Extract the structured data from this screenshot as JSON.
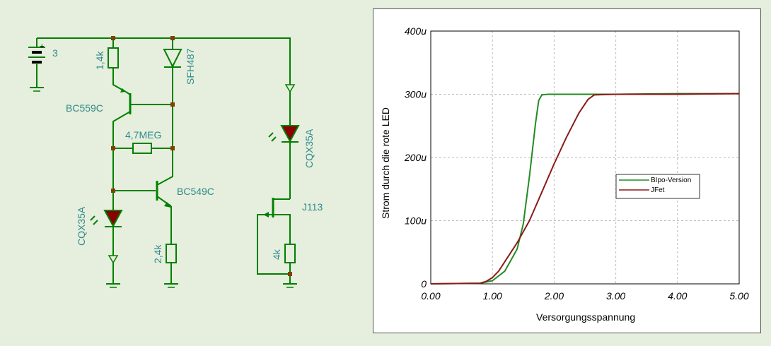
{
  "schematic": {
    "battery_value": "3",
    "r1_label": "1,4k",
    "q1_label": "BC559C",
    "d_sfh_label": "SFH487",
    "r_feedback_label": "4,7MEG",
    "q2_label": "BC549C",
    "led1_label": "CQX35A",
    "r2_label": "2,4k",
    "led2_label": "CQX35A",
    "jfet_label": "J113",
    "r3_label": "4k",
    "plus_sign": "+",
    "colors": {
      "wire": "#008000",
      "text": "#2e8b8b",
      "led_fill": "#8b0000",
      "junction": "#804000"
    }
  },
  "chart_data": {
    "type": "line",
    "xlabel": "Versorgungsspannung",
    "ylabel": "Strom durch die rote LED",
    "xlim": [
      0,
      5
    ],
    "ylim": [
      0,
      400
    ],
    "x_ticks": [
      "0.00",
      "1.00",
      "2.00",
      "3.00",
      "4.00",
      "5.00"
    ],
    "y_ticks": [
      "0",
      "100u",
      "200u",
      "300u",
      "400u"
    ],
    "grid": true,
    "legend_position": "center-right",
    "series": [
      {
        "name": "BIpo-Version",
        "color": "#228b22",
        "x": [
          0,
          0.8,
          1.0,
          1.2,
          1.4,
          1.5,
          1.6,
          1.7,
          1.75,
          1.8,
          1.9,
          2.5,
          3.0,
          4.0,
          5.0
        ],
        "y": [
          0,
          1,
          5,
          20,
          55,
          95,
          170,
          255,
          290,
          299,
          300,
          300,
          300,
          301,
          301
        ]
      },
      {
        "name": "JFet",
        "color": "#8b1a1a",
        "x": [
          0,
          0.8,
          0.9,
          1.0,
          1.1,
          1.2,
          1.4,
          1.6,
          1.8,
          2.0,
          2.2,
          2.4,
          2.55,
          2.65,
          3.0,
          4.0,
          5.0
        ],
        "y": [
          0,
          1,
          4,
          10,
          20,
          35,
          65,
          100,
          145,
          190,
          232,
          270,
          292,
          299,
          300,
          300,
          301
        ]
      }
    ]
  }
}
